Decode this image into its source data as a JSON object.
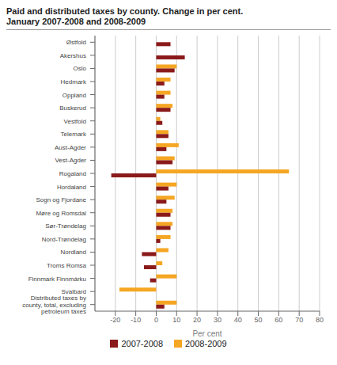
{
  "chart_data": {
    "type": "bar",
    "orientation": "horizontal",
    "title": "Paid and distributed taxes by county. Change in per cent.",
    "subtitle": "January 2007-2008 and 2008-2009",
    "categories": [
      "Østfold",
      "Akershus",
      "Oslo",
      "Hedmark",
      "Oppland",
      "Buskerud",
      "Vestfold",
      "Telemark",
      "Aust-Agder",
      "Vest-Agder",
      "Rogaland",
      "Hordaland",
      "Sogn og Fjordane",
      "Møre og Romsdal",
      "Sør-Trøndelag",
      "Nord-Trøndelag",
      "Nordland",
      "Troms Romsa",
      "Finnmark Finnmárku",
      "Svalbard",
      "Distributed taxes by\ncounty, total, excluding\npetroleum taxes"
    ],
    "series": [
      {
        "name": "2007-2008",
        "color": "#8B1A1A",
        "values": [
          7,
          14,
          9,
          4,
          4,
          7,
          3,
          6,
          5,
          8,
          -22,
          6,
          5,
          7,
          7,
          2,
          -7,
          -6,
          -3,
          0,
          4
        ]
      },
      {
        "name": "2008-2009",
        "color": "#F5A623",
        "values": [
          0,
          0,
          10,
          7,
          7,
          8,
          2,
          6,
          11,
          9,
          65,
          10,
          9,
          8,
          8,
          7,
          6,
          3,
          10,
          -18,
          10
        ]
      }
    ],
    "xlabel": "Per cent",
    "xlim": [
      -30,
      80
    ],
    "xticks": [
      -20,
      -10,
      0,
      10,
      20,
      30,
      40,
      50,
      60,
      70,
      80
    ],
    "grid": true,
    "legend": "bottom"
  }
}
